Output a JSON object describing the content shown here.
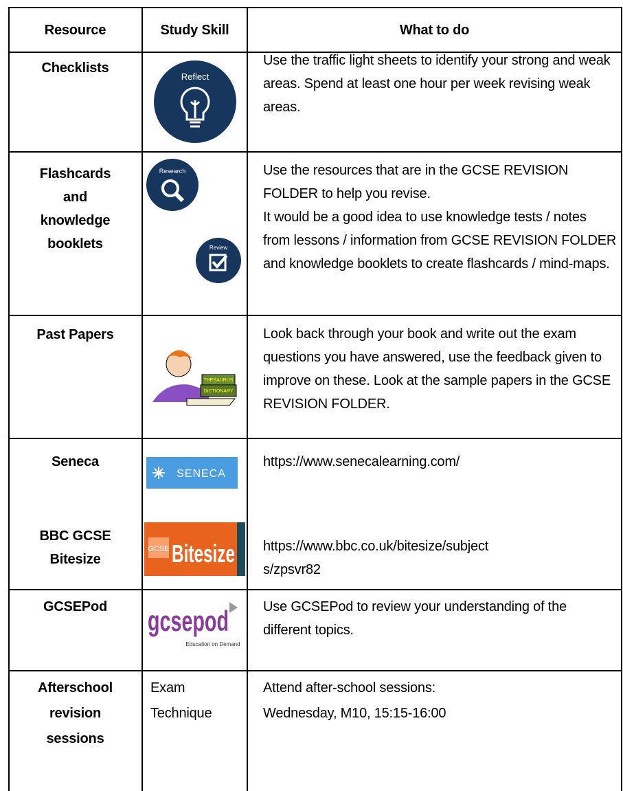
{
  "table": {
    "header": [
      "Resource",
      "Study Skill",
      "What to do"
    ],
    "rows": [
      {
        "resource": [
          "Checklists"
        ],
        "icons": [
          "Reflect"
        ],
        "text": [
          "Use the traffic light sheets to identify your strong and weak areas. Spend at least one hour per week revising weak areas."
        ]
      },
      {
        "resource": [
          "Flashcards",
          "and",
          "knowledge",
          "booklets"
        ],
        "icons": [
          "Research",
          "Review"
        ],
        "text": [
          "Use the resources that are in the GCSE REVISION FOLDER to help you revise.",
          "It would be a good idea to use knowledge tests / notes from lessons / information from GCSE REVISION FOLDER and knowledge booklets to create flashcards / mind-maps."
        ]
      },
      {
        "resource": [
          "Past Papers"
        ],
        "icons": [
          "THESAURUS",
          "DICTIONARY"
        ],
        "text": [
          "Look back through your book and write out the exam questions you have answered, use the feedback given to improve on these. Look at the sample papers in the GCSE REVISION FOLDER."
        ]
      },
      {
        "resource": [
          "Seneca"
        ],
        "icons": [
          "SENECA"
        ],
        "text": [
          "https://www.senecalearning.com/"
        ]
      },
      {
        "resource": [
          "BBC GCSE",
          "Bitesize"
        ],
        "icons": [
          "GCSE",
          "Bitesize"
        ],
        "text": [
          "https://www.bbc.co.uk/bitesize/subjects/zpsvr82"
        ]
      },
      {
        "resource": [
          "GCSEPod"
        ],
        "icons": [
          "gcsepod",
          "Education on Demand"
        ],
        "text": [
          "Use GCSEPod to review your understanding of the different topics."
        ]
      },
      {
        "resource": [
          "Afterschool",
          "revision",
          "sessions"
        ],
        "skill": [
          "Exam",
          "Technique"
        ],
        "text": [
          "Attend after-school sessions:",
          "Wednesday, M10, 15:15-16:00"
        ]
      }
    ]
  }
}
